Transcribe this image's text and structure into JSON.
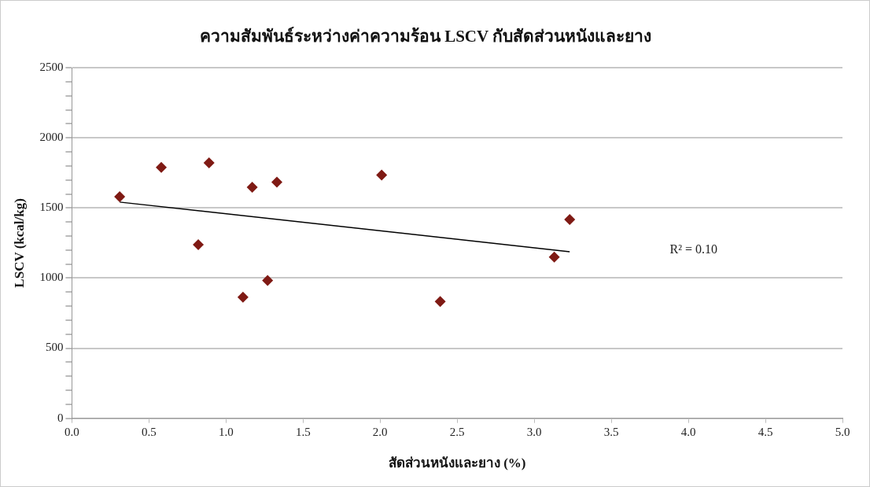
{
  "chart_data": {
    "type": "scatter",
    "title": "ความสัมพันธ์ระหว่างค่าความร้อน LSCV กับสัดส่วนหนังและยาง",
    "xlabel": "สัดส่วนหนังและยาง (%)",
    "ylabel": "LSCV (kcal/kg)",
    "series": [
      {
        "color": "#7f1a14",
        "marker": "diamond",
        "x": [
          0.31,
          0.58,
          0.82,
          0.89,
          1.11,
          1.17,
          1.27,
          1.33,
          2.01,
          2.39,
          3.13,
          3.23
        ],
        "values": [
          1580,
          1790,
          1238,
          1822,
          864,
          1648,
          983,
          1685,
          1735,
          833,
          1150,
          1418
        ]
      },
      {
        "type": "line",
        "color": "#000000",
        "marker": "none",
        "x": [
          0.31,
          3.23
        ],
        "values": [
          1542,
          1188
        ]
      }
    ],
    "xlim": [
      0,
      5
    ],
    "xticks": [
      {
        "value": 0,
        "label": "0.0"
      },
      {
        "value": 0.5,
        "label": "0.5"
      },
      {
        "value": 1,
        "label": "1.0"
      },
      {
        "value": 1.5,
        "label": "1.5"
      },
      {
        "value": 2,
        "label": "2.0"
      },
      {
        "value": 2.5,
        "label": "2.5"
      },
      {
        "value": 3,
        "label": "3.0"
      },
      {
        "value": 3.5,
        "label": "3.5"
      },
      {
        "value": 4,
        "label": "4.0"
      },
      {
        "value": 4.5,
        "label": "4.5"
      },
      {
        "value": 5,
        "label": "5.0"
      }
    ],
    "ylim": [
      0,
      2500
    ],
    "yticks": [
      0,
      {
        "value": 100,
        "label": null
      },
      {
        "value": 200,
        "label": null
      },
      {
        "value": 300,
        "label": null
      },
      {
        "value": 400,
        "label": null
      },
      500,
      {
        "value": 600,
        "label": null
      },
      {
        "value": 700,
        "label": null
      },
      {
        "value": 800,
        "label": null
      },
      {
        "value": 900,
        "label": null
      },
      1000,
      {
        "value": 1100,
        "label": null
      },
      {
        "value": 1200,
        "label": null
      },
      {
        "value": 1300,
        "label": null
      },
      {
        "value": 1400,
        "label": null
      },
      1500,
      {
        "value": 1600,
        "label": null
      },
      {
        "value": 1700,
        "label": null
      },
      {
        "value": 1800,
        "label": null
      },
      {
        "value": 1900,
        "label": null
      },
      2000,
      {
        "value": 2100,
        "label": null
      },
      {
        "value": 2200,
        "label": null
      },
      {
        "value": 2300,
        "label": null
      },
      {
        "value": 2400,
        "label": null
      },
      2500
    ],
    "grid": "y",
    "legend": false,
    "annotations": [
      "R² = 0.10"
    ]
  }
}
